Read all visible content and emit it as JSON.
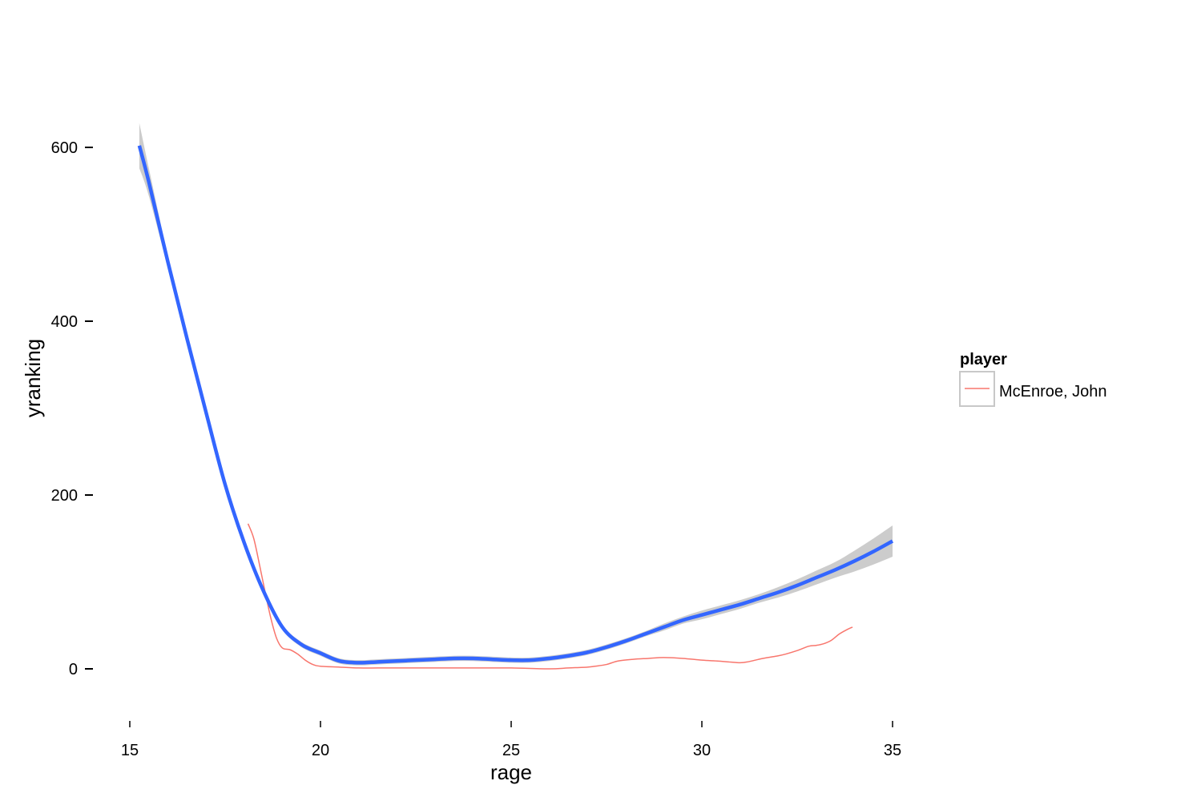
{
  "chart_data": {
    "type": "line",
    "xlabel": "rage",
    "ylabel": "yranking",
    "xlim": [
      15,
      35
    ],
    "ylim": [
      -60,
      650
    ],
    "x_ticks": [
      15,
      20,
      25,
      30,
      35
    ],
    "y_ticks": [
      0,
      200,
      400,
      600
    ],
    "grid": false,
    "legend": {
      "title": "player",
      "position": "right",
      "entries": [
        "McEnroe, John"
      ]
    },
    "series": [
      {
        "name": "McEnroe, John",
        "color": "#f8766d",
        "x": [
          18.1,
          18.25,
          18.4,
          18.55,
          18.7,
          18.85,
          19.0,
          19.2,
          19.4,
          19.6,
          19.8,
          20.0,
          20.5,
          21.0,
          21.5,
          22,
          23,
          24,
          25,
          26,
          26.5,
          27,
          27.2,
          27.5,
          27.8,
          28.2,
          28.6,
          29.0,
          29.5,
          30.0,
          30.4,
          30.7,
          31.0,
          31.2,
          31.6,
          32.0,
          32.2,
          32.5,
          32.8,
          33.0,
          33.2,
          33.4,
          33.6,
          33.8,
          33.95
        ],
        "y": [
          167,
          150,
          120,
          88,
          58,
          35,
          24,
          22,
          17,
          10,
          5,
          3,
          2,
          1,
          1,
          1,
          1,
          1,
          1,
          0,
          1,
          2,
          3,
          5,
          9,
          11,
          12,
          13,
          12,
          10,
          9,
          8,
          7,
          8,
          12,
          15,
          17,
          21,
          26,
          27,
          29,
          33,
          40,
          45,
          48
        ]
      }
    ],
    "smooth": {
      "color": "#3366ff",
      "band_color": "#cccccc",
      "x": [
        15.25,
        15.5,
        16,
        16.5,
        17,
        17.5,
        18,
        18.5,
        19,
        19.5,
        20,
        20.5,
        21,
        21.5,
        22,
        22.5,
        23,
        23.5,
        24,
        24.5,
        25,
        25.5,
        26,
        26.5,
        27,
        27.5,
        28,
        28.5,
        29,
        29.5,
        30,
        30.5,
        31,
        31.5,
        32,
        32.5,
        33,
        33.5,
        34,
        34.5,
        35
      ],
      "y": [
        602,
        560,
        468,
        380,
        295,
        212,
        145,
        90,
        48,
        28,
        18,
        9,
        7,
        8,
        9,
        10,
        11,
        12,
        12,
        11,
        10,
        10,
        12,
        15,
        19,
        25,
        32,
        40,
        48,
        56,
        62,
        68,
        74,
        81,
        88,
        96,
        105,
        114,
        124,
        135,
        147
      ],
      "upper": [
        628,
        576,
        475,
        385,
        299,
        216,
        149,
        94,
        51,
        31,
        21,
        12,
        10,
        11,
        12,
        13,
        14,
        15,
        15,
        14,
        13,
        13,
        15,
        18,
        22,
        28,
        35,
        43,
        52,
        60,
        67,
        73,
        79,
        86,
        94,
        103,
        113,
        123,
        136,
        150,
        165
      ],
      "lower": [
        576,
        544,
        461,
        375,
        291,
        208,
        141,
        86,
        45,
        25,
        15,
        6,
        4,
        5,
        6,
        7,
        8,
        9,
        9,
        8,
        7,
        7,
        9,
        12,
        16,
        22,
        29,
        37,
        44,
        52,
        57,
        63,
        69,
        76,
        82,
        89,
        97,
        105,
        112,
        120,
        129
      ]
    }
  }
}
